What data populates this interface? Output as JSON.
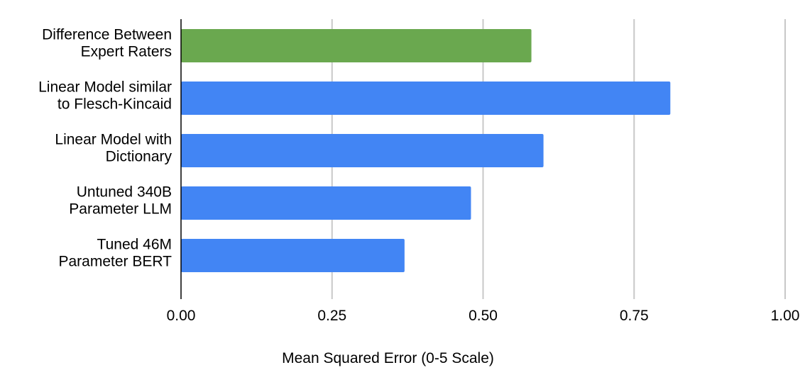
{
  "chart_data": {
    "type": "bar",
    "orientation": "horizontal",
    "categories": [
      [
        "Difference Between",
        "Expert Raters"
      ],
      [
        "Linear Model similar",
        "to Flesch-Kincaid"
      ],
      [
        "Linear Model with",
        "Dictionary"
      ],
      [
        "Untuned 340B",
        "Parameter LLM"
      ],
      [
        "Tuned 46M",
        "Parameter BERT"
      ]
    ],
    "values": [
      0.58,
      0.81,
      0.6,
      0.48,
      0.37
    ],
    "bar_colors": [
      "#6aa84f",
      "#4285f4",
      "#4285f4",
      "#4285f4",
      "#4285f4"
    ],
    "xlabel": "Mean Squared Error (0-5 Scale)",
    "ylabel": "",
    "title": "",
    "xlim": [
      0,
      1
    ],
    "xticks": [
      "0.00",
      "0.25",
      "0.50",
      "0.75",
      "1.00"
    ],
    "grid": true,
    "legend": "none"
  }
}
